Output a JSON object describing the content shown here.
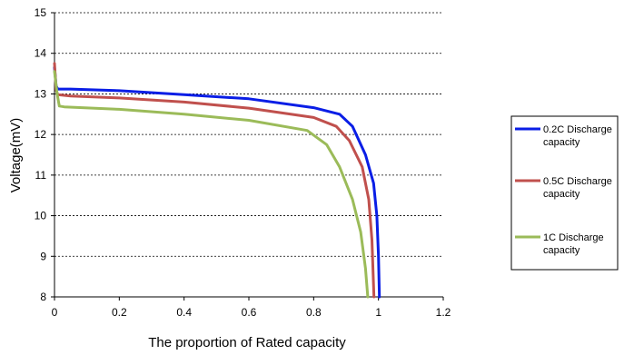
{
  "chart_data": {
    "type": "line",
    "xlabel": "The proportion of Rated capacity",
    "ylabel": "Voltage(mV)",
    "xlim": [
      0,
      1.2
    ],
    "ylim": [
      8,
      15
    ],
    "x_ticks": [
      "0",
      "0.2",
      "0.4",
      "0.6",
      "0.8",
      "1",
      "1.2"
    ],
    "y_ticks": [
      "8",
      "9",
      "10",
      "11",
      "12",
      "13",
      "14",
      "15"
    ],
    "grid": "horizontal dotted",
    "legend_position": "right",
    "series": [
      {
        "name_lines": [
          "0.2C Discharge",
          "capacity"
        ],
        "color": "#0a1ee6",
        "points": [
          [
            0,
            13.65
          ],
          [
            0.005,
            13.2
          ],
          [
            0.01,
            13.12
          ],
          [
            0.05,
            13.12
          ],
          [
            0.2,
            13.08
          ],
          [
            0.4,
            12.98
          ],
          [
            0.6,
            12.88
          ],
          [
            0.8,
            12.66
          ],
          [
            0.88,
            12.5
          ],
          [
            0.92,
            12.2
          ],
          [
            0.96,
            11.5
          ],
          [
            0.985,
            10.8
          ],
          [
            0.995,
            10.0
          ],
          [
            1.0,
            9.0
          ],
          [
            1.003,
            8.0
          ]
        ]
      },
      {
        "name_lines": [
          "0.5C Discharge",
          "capacity"
        ],
        "color": "#c0504d",
        "points": [
          [
            0,
            13.75
          ],
          [
            0.005,
            13.1
          ],
          [
            0.01,
            12.98
          ],
          [
            0.05,
            12.95
          ],
          [
            0.2,
            12.9
          ],
          [
            0.4,
            12.8
          ],
          [
            0.6,
            12.65
          ],
          [
            0.8,
            12.42
          ],
          [
            0.87,
            12.2
          ],
          [
            0.91,
            11.85
          ],
          [
            0.95,
            11.2
          ],
          [
            0.97,
            10.4
          ],
          [
            0.98,
            9.4
          ],
          [
            0.986,
            8.0
          ]
        ]
      },
      {
        "name_lines": [
          "1C Discharge",
          "capacity"
        ],
        "color": "#9bbb59",
        "points": [
          [
            0,
            13.55
          ],
          [
            0.008,
            13.0
          ],
          [
            0.015,
            12.7
          ],
          [
            0.03,
            12.68
          ],
          [
            0.2,
            12.62
          ],
          [
            0.4,
            12.5
          ],
          [
            0.6,
            12.35
          ],
          [
            0.78,
            12.1
          ],
          [
            0.84,
            11.75
          ],
          [
            0.88,
            11.2
          ],
          [
            0.92,
            10.4
          ],
          [
            0.945,
            9.6
          ],
          [
            0.96,
            8.7
          ],
          [
            0.967,
            8.0
          ]
        ]
      }
    ]
  }
}
